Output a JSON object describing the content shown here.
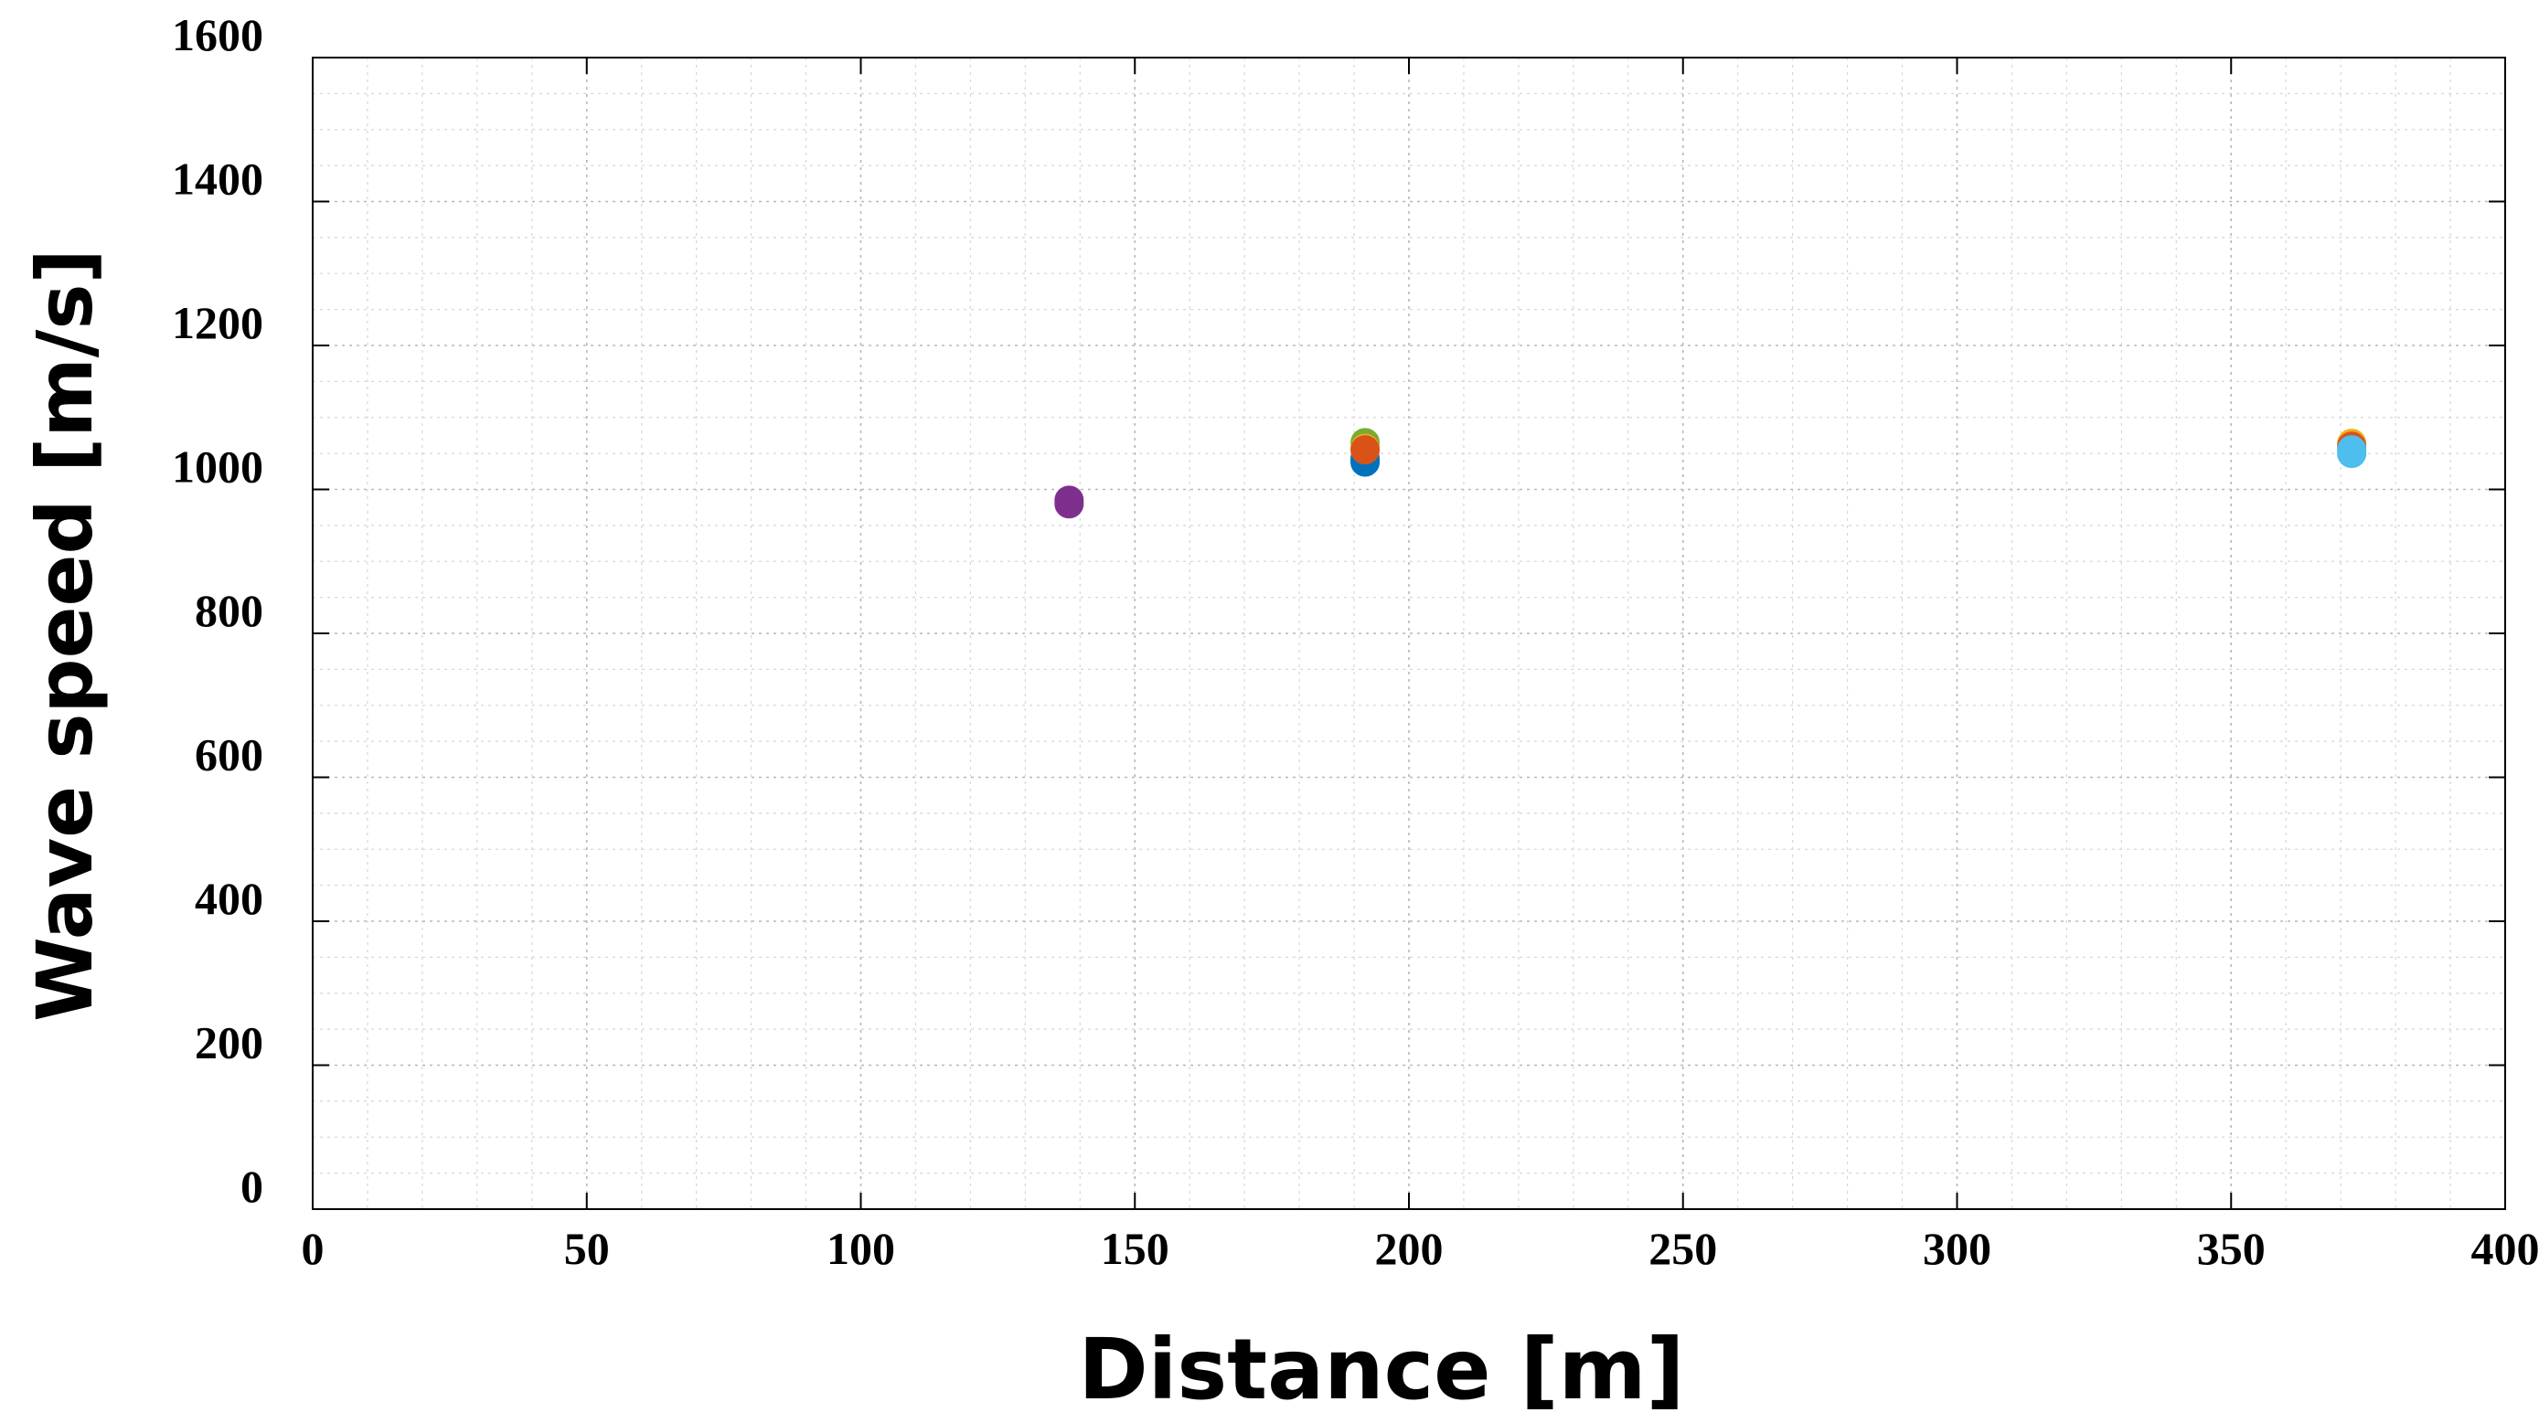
{
  "chart_data": {
    "type": "scatter",
    "title": "",
    "xlabel": "Distance [m]",
    "ylabel": "Wave speed [m/s]",
    "xlim": [
      0,
      400
    ],
    "ylim": [
      0,
      1600
    ],
    "x_ticks": [
      "0",
      "50",
      "100",
      "150",
      "200",
      "250",
      "300",
      "350",
      "400"
    ],
    "y_ticks": [
      "0",
      "200",
      "400",
      "600",
      "800",
      "1000",
      "1200",
      "1400",
      "1600"
    ],
    "grid": true,
    "minor_grid": true,
    "grid_style": "dotted",
    "legend": "none",
    "marker": "filled-circle",
    "series": [
      {
        "color": "#7e2f8e",
        "points": [
          [
            138,
            980
          ],
          [
            138,
            985
          ]
        ]
      },
      {
        "color": "#0072bd",
        "points": [
          [
            192,
            1038
          ],
          [
            192,
            1043
          ]
        ]
      },
      {
        "color": "#77ac30",
        "points": [
          [
            192,
            1065
          ]
        ]
      },
      {
        "color": "#edb120",
        "points": [
          [
            192,
            1057
          ],
          [
            372,
            1064
          ]
        ]
      },
      {
        "color": "#d95319",
        "points": [
          [
            192,
            1055
          ],
          [
            372,
            1060
          ]
        ]
      },
      {
        "color": "#4dbeee",
        "points": [
          [
            372,
            1050
          ],
          [
            372,
            1055
          ]
        ]
      }
    ]
  }
}
